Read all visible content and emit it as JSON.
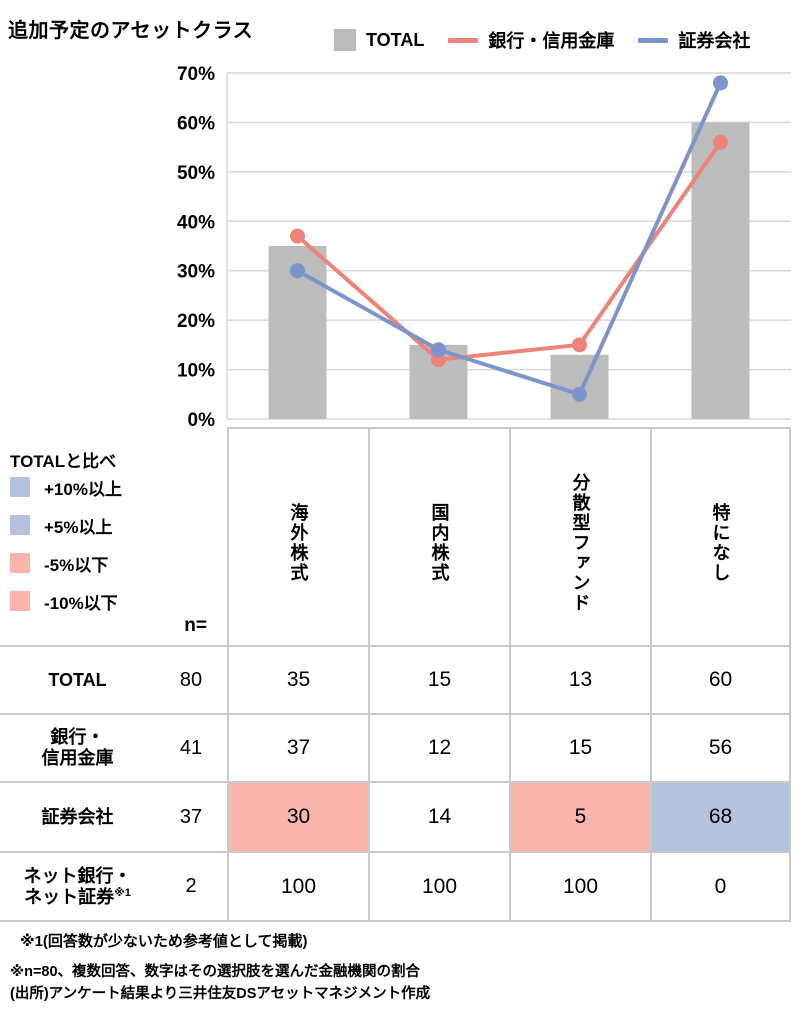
{
  "title": "追加予定のアセットクラス",
  "legend": {
    "total_label": "TOTAL",
    "bank_label": "銀行・信用金庫",
    "securities_label": "証券会社"
  },
  "colors": {
    "bar": "#bcbcbc",
    "bank_line": "#ed8379",
    "securities_line": "#7b95ca",
    "grid": "#d9d9d9",
    "axis": "#d9d9d9",
    "highlight_plus": "#b6c3dc",
    "highlight_minus": "#f9b4ab"
  },
  "chart_data": {
    "type": "bar+line combo",
    "categories": [
      "海外株式",
      "国内株式",
      "分散型ファンド",
      "特になし"
    ],
    "series": [
      {
        "name": "TOTAL",
        "type": "bar",
        "values": [
          35,
          15,
          13,
          60
        ]
      },
      {
        "name": "銀行・信用金庫",
        "type": "line",
        "values": [
          37,
          12,
          15,
          56
        ]
      },
      {
        "name": "証券会社",
        "type": "line",
        "values": [
          30,
          14,
          5,
          68
        ]
      }
    ],
    "title": "追加予定のアセットクラス",
    "xlabel": "",
    "ylabel": "",
    "ylim": [
      0,
      70
    ],
    "ytick_step": 10,
    "ytick_suffix": "%",
    "grid": "horizontal",
    "legend_position": "top"
  },
  "compare_legend": {
    "title": "TOTALと比べ",
    "items": [
      {
        "label": "+10%以上",
        "type": "plus"
      },
      {
        "label": "+5%以上",
        "type": "plus"
      },
      {
        "label": "-5%以下",
        "type": "minus"
      },
      {
        "label": "-10%以下",
        "type": "minus"
      }
    ],
    "n_label": "n="
  },
  "table": {
    "columns": [
      "海外株式",
      "国内株式",
      "分散型ファンド",
      "特になし"
    ],
    "rows": [
      {
        "label_lines": [
          "TOTAL"
        ],
        "label_sup": "",
        "n": "80",
        "values": [
          "35",
          "15",
          "13",
          "60"
        ],
        "highlights": [
          null,
          null,
          null,
          null
        ]
      },
      {
        "label_lines": [
          "銀行・",
          "信用金庫"
        ],
        "label_sup": "",
        "n": "41",
        "values": [
          "37",
          "12",
          "15",
          "56"
        ],
        "highlights": [
          null,
          null,
          null,
          null
        ]
      },
      {
        "label_lines": [
          "証券会社"
        ],
        "label_sup": "",
        "n": "37",
        "values": [
          "30",
          "14",
          "5",
          "68"
        ],
        "highlights": [
          "minus",
          null,
          "minus",
          "plus"
        ]
      },
      {
        "label_lines": [
          "ネット銀行・",
          "ネット証券"
        ],
        "label_sup": "※1",
        "n": "2",
        "values": [
          "100",
          "100",
          "100",
          "0"
        ],
        "highlights": [
          null,
          null,
          null,
          null
        ]
      }
    ]
  },
  "footnotes": {
    "note1": "※1(回答数が少ないため参考値として掲載)",
    "note2": "※n=80、複数回答、数字はその選択肢を選んだ金融機関の割合",
    "source": "(出所)アンケート結果より三井住友DSアセットマネジメント作成"
  }
}
